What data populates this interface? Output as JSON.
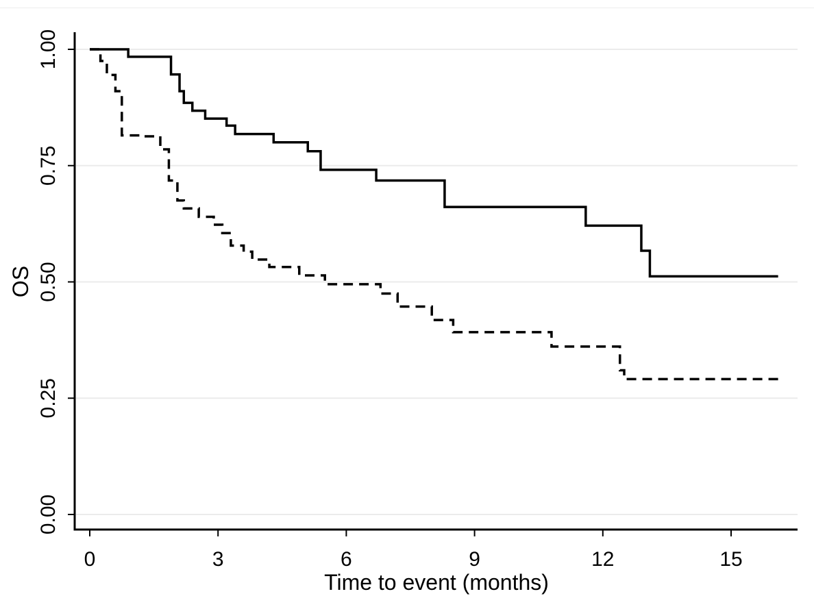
{
  "chart_data": {
    "type": "line",
    "title": "",
    "xlabel": "Time to event (months)",
    "ylabel": "OS",
    "xlim": [
      0,
      16.5
    ],
    "ylim": [
      0,
      1
    ],
    "xticks": [
      0,
      3,
      6,
      9,
      12,
      15
    ],
    "yticks": [
      0.0,
      0.25,
      0.5,
      0.75,
      1.0
    ],
    "xtick_labels": [
      "0",
      "3",
      "6",
      "9",
      "12",
      "15"
    ],
    "ytick_labels": [
      "0.00",
      "0.25",
      "0.50",
      "0.75",
      "1.00"
    ],
    "grid": "horizontal",
    "legend": "none",
    "step": true,
    "series": [
      {
        "style": "solid",
        "color": "#000000",
        "x": [
          0,
          0.9,
          1.9,
          2.1,
          2.2,
          2.4,
          2.7,
          3.2,
          3.4,
          4.3,
          5.1,
          5.4,
          6.7,
          8.3,
          11.6,
          12.9,
          13.1,
          16.1
        ],
        "y": [
          1.0,
          0.984,
          0.946,
          0.91,
          0.885,
          0.868,
          0.851,
          0.836,
          0.818,
          0.8,
          0.781,
          0.741,
          0.718,
          0.661,
          0.621,
          0.567,
          0.512,
          0.512
        ]
      },
      {
        "style": "dashed",
        "color": "#000000",
        "x": [
          0,
          0.25,
          0.4,
          0.6,
          0.75,
          1.2,
          1.65,
          1.85,
          2.05,
          2.2,
          2.55,
          2.9,
          3.1,
          3.3,
          3.6,
          3.8,
          4.2,
          4.9,
          5.5,
          6.8,
          7.2,
          8.0,
          8.5,
          10.8,
          12.4,
          12.5,
          16.1
        ],
        "y": [
          1.0,
          0.975,
          0.945,
          0.91,
          0.815,
          0.813,
          0.785,
          0.718,
          0.675,
          0.658,
          0.64,
          0.623,
          0.605,
          0.578,
          0.565,
          0.548,
          0.532,
          0.514,
          0.495,
          0.475,
          0.447,
          0.418,
          0.392,
          0.361,
          0.31,
          0.291,
          0.291
        ]
      }
    ]
  }
}
